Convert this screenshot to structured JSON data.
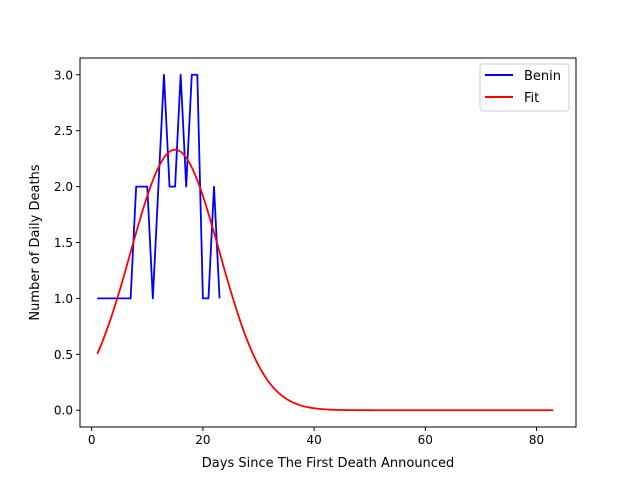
{
  "chart_data": {
    "type": "line",
    "title": "",
    "xlabel": "Days Since The First Death Announced",
    "ylabel": "Number of Daily Deaths",
    "xlim": [
      -2.1,
      87.1
    ],
    "ylim": [
      -0.15,
      3.15
    ],
    "x_ticks": [
      0,
      20,
      40,
      60,
      80
    ],
    "y_ticks": [
      0.0,
      0.5,
      1.0,
      1.5,
      2.0,
      2.5,
      3.0
    ],
    "x_tick_labels": [
      "0",
      "20",
      "40",
      "60",
      "80"
    ],
    "y_tick_labels": [
      "0.0",
      "0.5",
      "1.0",
      "1.5",
      "2.0",
      "2.5",
      "3.0"
    ],
    "grid": false,
    "legend_position": "top-right",
    "series": [
      {
        "name": "Benin",
        "color": "#0000ff",
        "x": [
          1,
          2,
          3,
          4,
          5,
          6,
          7,
          8,
          9,
          10,
          11,
          12,
          13,
          14,
          15,
          16,
          17,
          18,
          19,
          20,
          21,
          22,
          23
        ],
        "y": [
          1,
          1,
          1,
          1,
          1,
          1,
          1,
          2,
          2,
          2,
          1,
          2,
          3,
          2,
          2,
          3,
          2,
          3,
          3,
          1,
          1,
          2,
          1
        ]
      },
      {
        "name": "Fit",
        "color": "#ff0000",
        "model": "gaussian",
        "amplitude": 2.33,
        "center": 15.0,
        "sigma": 8.0,
        "x_range": [
          1,
          83
        ]
      }
    ]
  }
}
